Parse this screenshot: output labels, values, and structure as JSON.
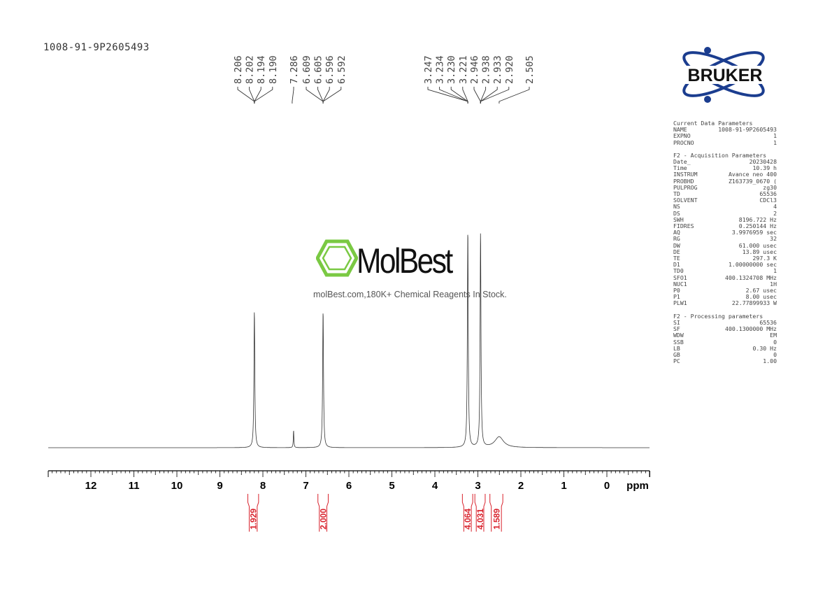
{
  "spectrum_title": "1008-91-9P2605493",
  "brand": {
    "logo_text": "BRUKER",
    "color": "#1b3d8f"
  },
  "watermark": {
    "name": "MolBest",
    "subtitle": "molBest.com,180K+ Chemical Reagents In Stock.",
    "color": "#7ac943"
  },
  "parameters": [
    {
      "header": "Current Data Parameters",
      "rows": [
        [
          "NAME",
          "1008-91-9P2605493"
        ],
        [
          "EXPNO",
          "1"
        ],
        [
          "PROCNO",
          "1"
        ]
      ]
    },
    {
      "header": "F2 - Acquisition Parameters",
      "rows": [
        [
          "Date_",
          "20230428"
        ],
        [
          "Time",
          "10.39 h"
        ],
        [
          "INSTRUM",
          "Avance neo 400"
        ],
        [
          "PROBHD",
          "Z163739_0670 ("
        ],
        [
          "PULPROG",
          "zg30"
        ],
        [
          "TD",
          "65536"
        ],
        [
          "SOLVENT",
          "CDCl3"
        ],
        [
          "NS",
          "4"
        ],
        [
          "DS",
          "2"
        ],
        [
          "SWH",
          "8196.722 Hz"
        ],
        [
          "FIDRES",
          "0.250144 Hz"
        ],
        [
          "AQ",
          "3.9976959 sec"
        ],
        [
          "RG",
          "32"
        ],
        [
          "DW",
          "61.000 usec"
        ],
        [
          "DE",
          "13.89 usec"
        ],
        [
          "TE",
          "297.3 K"
        ],
        [
          "D1",
          "1.00000000 sec"
        ],
        [
          "TD0",
          "1"
        ],
        [
          "SFO1",
          "400.1324708 MHz"
        ],
        [
          "NUC1",
          "1H"
        ],
        [
          "P0",
          "2.67 usec"
        ],
        [
          "P1",
          "8.00 usec"
        ],
        [
          "PLW1",
          "22.77899933 W"
        ]
      ]
    },
    {
      "header": "F2 - Processing parameters",
      "rows": [
        [
          "SI",
          "65536"
        ],
        [
          "SF",
          "400.1300000 MHz"
        ],
        [
          "WDW",
          "EM"
        ],
        [
          "SSB",
          "0"
        ],
        [
          "LB",
          "0.30 Hz"
        ],
        [
          "GB",
          "0"
        ],
        [
          "PC",
          "1.00"
        ]
      ]
    }
  ],
  "chart_data": {
    "type": "line",
    "xlabel": "ppm",
    "xlim": [
      13,
      -1
    ],
    "x_reversed": true,
    "xticks": [
      "12",
      "11",
      "10",
      "9",
      "8",
      "7",
      "6",
      "5",
      "4",
      "3",
      "2",
      "1",
      "0"
    ],
    "grid": false,
    "peaks": [
      {
        "ppm": 8.198,
        "rel_height": 0.63,
        "width": 0.012
      },
      {
        "ppm": 7.286,
        "rel_height": 0.08,
        "width": 0.008
      },
      {
        "ppm": 6.6,
        "rel_height": 0.63,
        "width": 0.012
      },
      {
        "ppm": 3.234,
        "rel_height": 1.0,
        "width": 0.012
      },
      {
        "ppm": 2.938,
        "rel_height": 0.99,
        "width": 0.012
      },
      {
        "ppm": 2.505,
        "rel_height": 0.05,
        "width": 0.12
      }
    ],
    "peak_labels": [
      {
        "labels": [
          "8.206",
          "8.202",
          "8.194",
          "8.190"
        ],
        "ppm": 8.198
      },
      {
        "labels": [
          "7.286"
        ],
        "ppm": 7.286
      },
      {
        "labels": [
          "6.609",
          "6.605",
          "6.596",
          "6.592"
        ],
        "ppm": 6.6
      },
      {
        "labels": [
          "3.247",
          "3.234",
          "3.230",
          "3.221"
        ],
        "ppm": 3.234
      },
      {
        "labels": [
          "2.946",
          "2.938",
          "2.933",
          "2.920"
        ],
        "ppm": 2.938
      },
      {
        "labels": [
          "2.505"
        ],
        "ppm": 2.505
      }
    ],
    "integrals": [
      {
        "value": "1.929",
        "from": 8.35,
        "to": 8.1
      },
      {
        "value": "2.000",
        "from": 6.72,
        "to": 6.48
      },
      {
        "value": "4.064",
        "from": 3.36,
        "to": 3.12
      },
      {
        "value": "4.031",
        "from": 3.07,
        "to": 2.83
      },
      {
        "value": "1.589",
        "from": 2.72,
        "to": 2.42
      }
    ],
    "integral_color": "#d9232d"
  }
}
